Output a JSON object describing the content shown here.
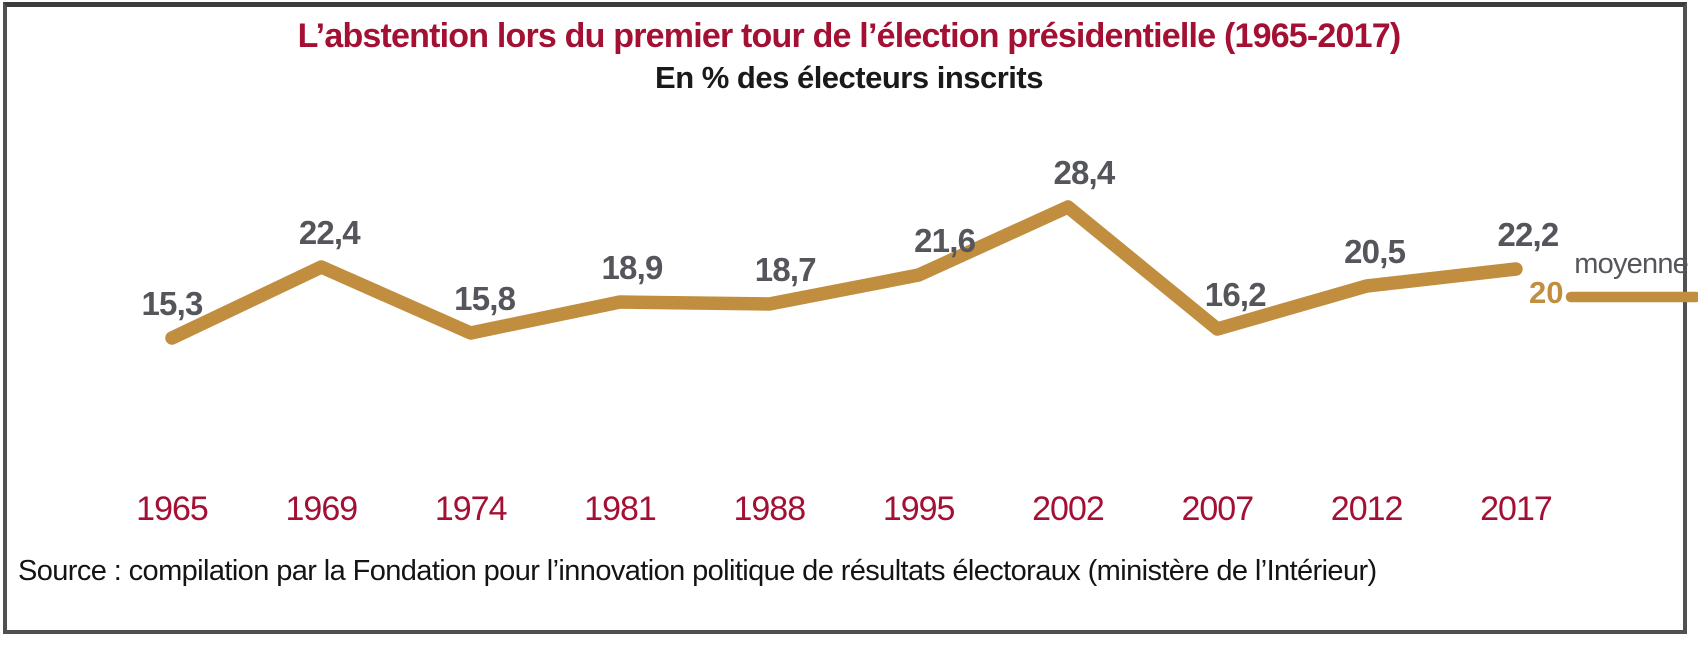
{
  "title": "L’abstention lors du premier tour de l’élection présidentielle (1965-2017)",
  "subtitle": "En % des électeurs inscrits",
  "source": "Source : compilation par la Fondation pour l’innovation politique de résultats électoraux (ministère de l’Intérieur)",
  "average": {
    "label": "moyenne",
    "value": "20"
  },
  "colors": {
    "line": "#C08E3E",
    "average_line": "#C08E3E",
    "average_value_text": "#C08E3E",
    "title_text": "#A41034",
    "year_labels": "#A41034",
    "value_labels": "#55565C",
    "average_label_text": "#55565C",
    "subtitle_text": "#1A1A1A",
    "source_text": "#141414",
    "frame_border": "#505050"
  },
  "chart_data": {
    "type": "line",
    "title": "L’abstention lors du premier tour de l’élection présidentielle (1965-2017)",
    "subtitle": "En % des électeurs inscrits",
    "categories": [
      "1965",
      "1969",
      "1974",
      "1981",
      "1988",
      "1995",
      "2002",
      "2007",
      "2012",
      "2017"
    ],
    "values": [
      15.3,
      22.4,
      15.8,
      18.9,
      18.7,
      21.6,
      28.4,
      16.2,
      20.5,
      22.2
    ],
    "value_labels": [
      "15,3",
      "22,4",
      "15,8",
      "18,9",
      "18,7",
      "21,6",
      "28,4",
      "16,2",
      "20,5",
      "22,2"
    ],
    "average": 20,
    "average_label": "moyenne",
    "unit": "% des électeurs inscrits",
    "xlabel": "",
    "ylabel": "En % des électeurs inscrits",
    "grid": false,
    "axes_visible": false,
    "legend_position": "right"
  }
}
